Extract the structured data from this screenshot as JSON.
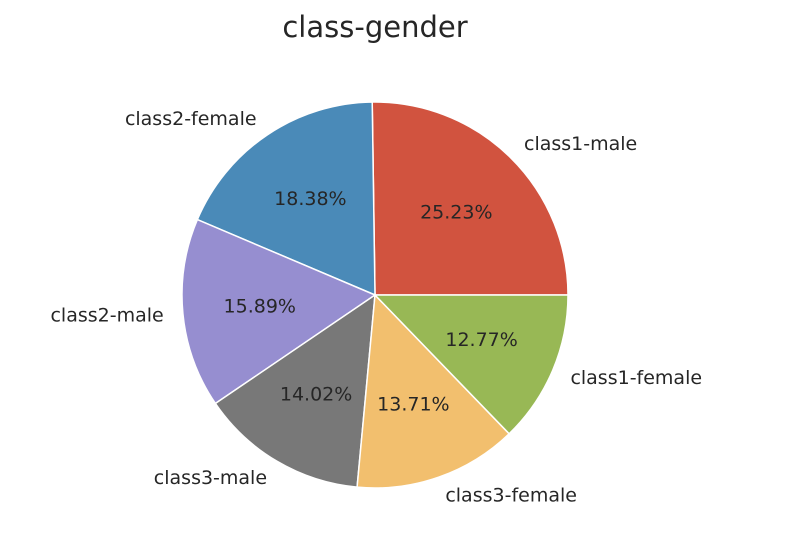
{
  "chart_data": {
    "type": "pie",
    "title": "class-gender",
    "slices": [
      {
        "label": "class1-male",
        "value": 25.23,
        "pct_label": "25.23%",
        "color": "#d1533f"
      },
      {
        "label": "class2-female",
        "value": 18.38,
        "pct_label": "18.38%",
        "color": "#4a8ab8"
      },
      {
        "label": "class2-male",
        "value": 15.89,
        "pct_label": "15.89%",
        "color": "#968ed0"
      },
      {
        "label": "class3-male",
        "value": 14.02,
        "pct_label": "14.02%",
        "color": "#787878"
      },
      {
        "label": "class3-female",
        "value": 13.71,
        "pct_label": "13.71%",
        "color": "#f2bf6e"
      },
      {
        "label": "class1-female",
        "value": 12.77,
        "pct_label": "12.77%",
        "color": "#98b855"
      }
    ],
    "start_angle_deg": 0,
    "direction": "counterclockwise",
    "legend": false
  }
}
